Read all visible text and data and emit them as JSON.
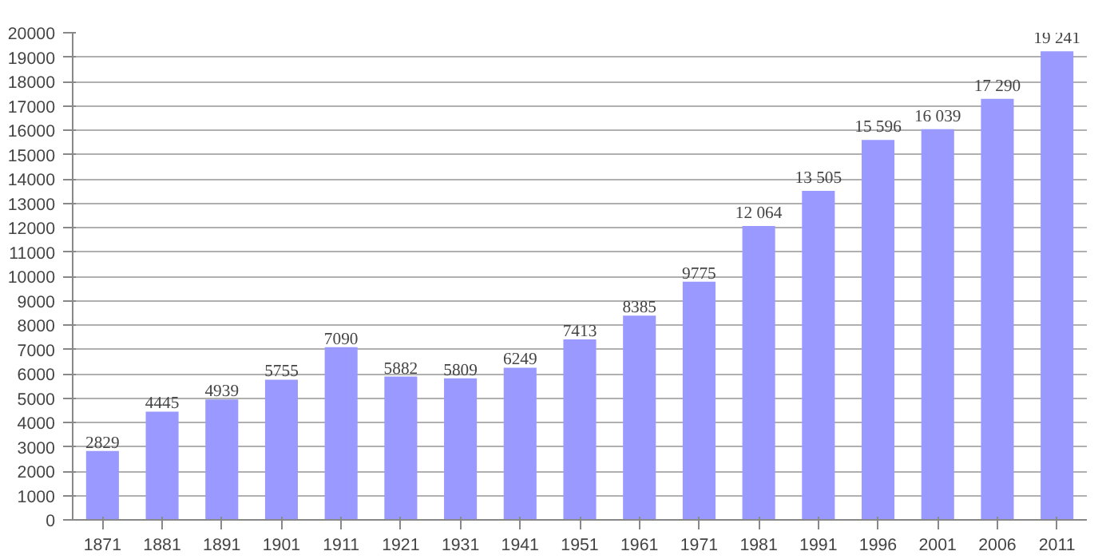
{
  "chart_data": {
    "type": "bar",
    "categories": [
      "1871",
      "1881",
      "1891",
      "1901",
      "1911",
      "1921",
      "1931",
      "1941",
      "1951",
      "1961",
      "1971",
      "1981",
      "1991",
      "1996",
      "2001",
      "2006",
      "2011"
    ],
    "values": [
      2829,
      4445,
      4939,
      5755,
      7090,
      5882,
      5809,
      6249,
      7413,
      8385,
      9775,
      12064,
      13505,
      15596,
      16039,
      17290,
      19241
    ],
    "value_labels": [
      "2829",
      "4445",
      "4939",
      "5755",
      "7090",
      "5882",
      "5809",
      "6249",
      "7413",
      "8385",
      "9775",
      "12 064",
      "13 505",
      "15 596",
      "16 039",
      "17 290",
      "19 241"
    ],
    "color": "#9999ff",
    "ylim": [
      0,
      20000
    ],
    "yticks": [
      0,
      1000,
      2000,
      3000,
      4000,
      5000,
      6000,
      7000,
      8000,
      9000,
      10000,
      11000,
      12000,
      13000,
      14000,
      15000,
      16000,
      17000,
      18000,
      19000,
      20000
    ],
    "grid": "y"
  }
}
